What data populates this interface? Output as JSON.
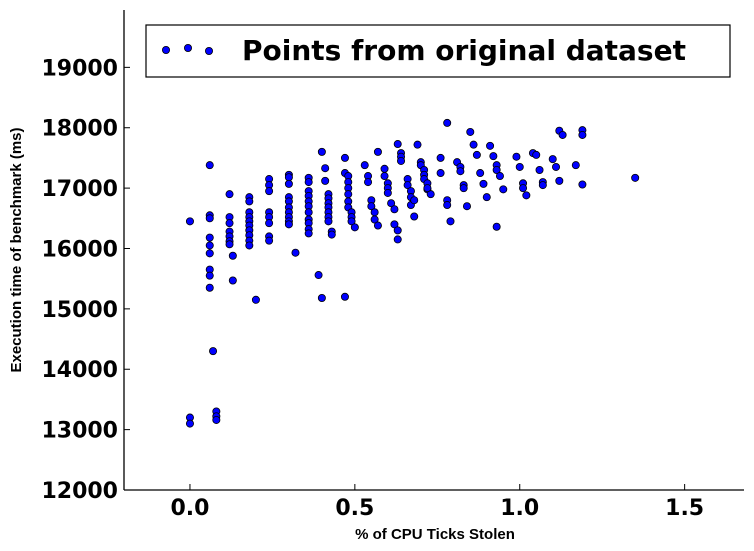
{
  "chart_data": {
    "type": "scatter",
    "title": "",
    "xlabel": "% of CPU Ticks Stolen",
    "ylabel": "Execution time of benchmark (ms)",
    "xlim": [
      -0.2,
      1.68
    ],
    "ylim": [
      12000,
      19950
    ],
    "xticks": [
      0.0,
      0.5,
      1.0,
      1.5
    ],
    "xtick_labels": [
      "0.0",
      "0.5",
      "1.0",
      "1.5"
    ],
    "yticks": [
      12000,
      13000,
      14000,
      15000,
      16000,
      17000,
      18000,
      19000
    ],
    "ytick_labels": [
      "12000",
      "13000",
      "14000",
      "15000",
      "16000",
      "17000",
      "18000",
      "19000"
    ],
    "grid": false,
    "legend": {
      "position": "top-right"
    },
    "colors": {
      "marker_fill": "#0000ff",
      "marker_edge": "#000000",
      "axes": "#000000"
    },
    "series": [
      {
        "name": "Points from original dataset",
        "points": [
          [
            0.0,
            16450
          ],
          [
            0.0,
            13200
          ],
          [
            0.0,
            13100
          ],
          [
            0.06,
            17380
          ],
          [
            0.06,
            16550
          ],
          [
            0.06,
            16500
          ],
          [
            0.06,
            16180
          ],
          [
            0.06,
            16050
          ],
          [
            0.06,
            15920
          ],
          [
            0.06,
            15650
          ],
          [
            0.06,
            15550
          ],
          [
            0.06,
            15350
          ],
          [
            0.07,
            14300
          ],
          [
            0.08,
            13300
          ],
          [
            0.08,
            13220
          ],
          [
            0.08,
            13160
          ],
          [
            0.12,
            16900
          ],
          [
            0.12,
            16520
          ],
          [
            0.12,
            16420
          ],
          [
            0.12,
            16280
          ],
          [
            0.12,
            16200
          ],
          [
            0.12,
            16120
          ],
          [
            0.12,
            16070
          ],
          [
            0.13,
            15880
          ],
          [
            0.13,
            15470
          ],
          [
            0.18,
            16850
          ],
          [
            0.18,
            16780
          ],
          [
            0.18,
            16600
          ],
          [
            0.18,
            16520
          ],
          [
            0.18,
            16450
          ],
          [
            0.18,
            16380
          ],
          [
            0.18,
            16300
          ],
          [
            0.18,
            16220
          ],
          [
            0.18,
            16130
          ],
          [
            0.18,
            16050
          ],
          [
            0.2,
            15150
          ],
          [
            0.24,
            17150
          ],
          [
            0.24,
            17050
          ],
          [
            0.24,
            16950
          ],
          [
            0.24,
            16600
          ],
          [
            0.24,
            16520
          ],
          [
            0.24,
            16420
          ],
          [
            0.24,
            16200
          ],
          [
            0.24,
            16130
          ],
          [
            0.3,
            17220
          ],
          [
            0.3,
            17180
          ],
          [
            0.3,
            17070
          ],
          [
            0.3,
            16850
          ],
          [
            0.3,
            16780
          ],
          [
            0.3,
            16680
          ],
          [
            0.3,
            16600
          ],
          [
            0.3,
            16520
          ],
          [
            0.3,
            16450
          ],
          [
            0.3,
            16400
          ],
          [
            0.32,
            15930
          ],
          [
            0.36,
            17170
          ],
          [
            0.36,
            17100
          ],
          [
            0.36,
            16950
          ],
          [
            0.36,
            16870
          ],
          [
            0.36,
            16780
          ],
          [
            0.36,
            16700
          ],
          [
            0.36,
            16600
          ],
          [
            0.36,
            16480
          ],
          [
            0.36,
            16420
          ],
          [
            0.36,
            16320
          ],
          [
            0.36,
            16250
          ],
          [
            0.39,
            15560
          ],
          [
            0.4,
            17600
          ],
          [
            0.41,
            17330
          ],
          [
            0.41,
            17120
          ],
          [
            0.4,
            15180
          ],
          [
            0.42,
            16900
          ],
          [
            0.42,
            16830
          ],
          [
            0.42,
            16750
          ],
          [
            0.42,
            16680
          ],
          [
            0.42,
            16600
          ],
          [
            0.42,
            16520
          ],
          [
            0.42,
            16450
          ],
          [
            0.43,
            16280
          ],
          [
            0.43,
            16230
          ],
          [
            0.47,
            17500
          ],
          [
            0.47,
            17250
          ],
          [
            0.48,
            17200
          ],
          [
            0.48,
            17100
          ],
          [
            0.48,
            17000
          ],
          [
            0.48,
            16900
          ],
          [
            0.48,
            16780
          ],
          [
            0.48,
            16680
          ],
          [
            0.49,
            16600
          ],
          [
            0.49,
            16520
          ],
          [
            0.49,
            16450
          ],
          [
            0.5,
            16350
          ],
          [
            0.47,
            15200
          ],
          [
            0.53,
            17380
          ],
          [
            0.54,
            17200
          ],
          [
            0.54,
            17100
          ],
          [
            0.55,
            16800
          ],
          [
            0.55,
            16700
          ],
          [
            0.56,
            16600
          ],
          [
            0.56,
            16480
          ],
          [
            0.57,
            16380
          ],
          [
            0.57,
            17600
          ],
          [
            0.59,
            17320
          ],
          [
            0.59,
            17200
          ],
          [
            0.6,
            17080
          ],
          [
            0.6,
            17000
          ],
          [
            0.6,
            16920
          ],
          [
            0.61,
            16750
          ],
          [
            0.62,
            16650
          ],
          [
            0.62,
            16400
          ],
          [
            0.63,
            16300
          ],
          [
            0.63,
            16150
          ],
          [
            0.63,
            17730
          ],
          [
            0.64,
            17580
          ],
          [
            0.64,
            17520
          ],
          [
            0.64,
            17450
          ],
          [
            0.66,
            17150
          ],
          [
            0.66,
            17050
          ],
          [
            0.67,
            16950
          ],
          [
            0.67,
            16850
          ],
          [
            0.67,
            16720
          ],
          [
            0.68,
            16530
          ],
          [
            0.68,
            16800
          ],
          [
            0.69,
            17720
          ],
          [
            0.7,
            17430
          ],
          [
            0.7,
            17380
          ],
          [
            0.71,
            17300
          ],
          [
            0.71,
            17220
          ],
          [
            0.71,
            17150
          ],
          [
            0.72,
            17080
          ],
          [
            0.72,
            16980
          ],
          [
            0.73,
            16900
          ],
          [
            0.72,
            17000
          ],
          [
            0.76,
            17500
          ],
          [
            0.76,
            17250
          ],
          [
            0.78,
            18080
          ],
          [
            0.78,
            16800
          ],
          [
            0.78,
            16720
          ],
          [
            0.79,
            16450
          ],
          [
            0.81,
            17430
          ],
          [
            0.82,
            17350
          ],
          [
            0.82,
            17280
          ],
          [
            0.83,
            17050
          ],
          [
            0.83,
            17000
          ],
          [
            0.84,
            16700
          ],
          [
            0.85,
            17930
          ],
          [
            0.86,
            17720
          ],
          [
            0.87,
            17550
          ],
          [
            0.88,
            17250
          ],
          [
            0.89,
            17070
          ],
          [
            0.9,
            16850
          ],
          [
            0.91,
            17700
          ],
          [
            0.92,
            17530
          ],
          [
            0.93,
            17380
          ],
          [
            0.93,
            17300
          ],
          [
            0.94,
            17200
          ],
          [
            0.95,
            16980
          ],
          [
            0.93,
            16360
          ],
          [
            0.99,
            17520
          ],
          [
            1.0,
            17350
          ],
          [
            1.01,
            17080
          ],
          [
            1.01,
            17000
          ],
          [
            1.02,
            16880
          ],
          [
            1.04,
            17580
          ],
          [
            1.05,
            17550
          ],
          [
            1.06,
            17300
          ],
          [
            1.07,
            17100
          ],
          [
            1.07,
            17050
          ],
          [
            1.1,
            17480
          ],
          [
            1.11,
            17350
          ],
          [
            1.12,
            17120
          ],
          [
            1.12,
            17950
          ],
          [
            1.13,
            17880
          ],
          [
            1.17,
            17380
          ],
          [
            1.19,
            17960
          ],
          [
            1.19,
            17880
          ],
          [
            1.19,
            17060
          ],
          [
            1.35,
            17170
          ]
        ]
      }
    ]
  }
}
